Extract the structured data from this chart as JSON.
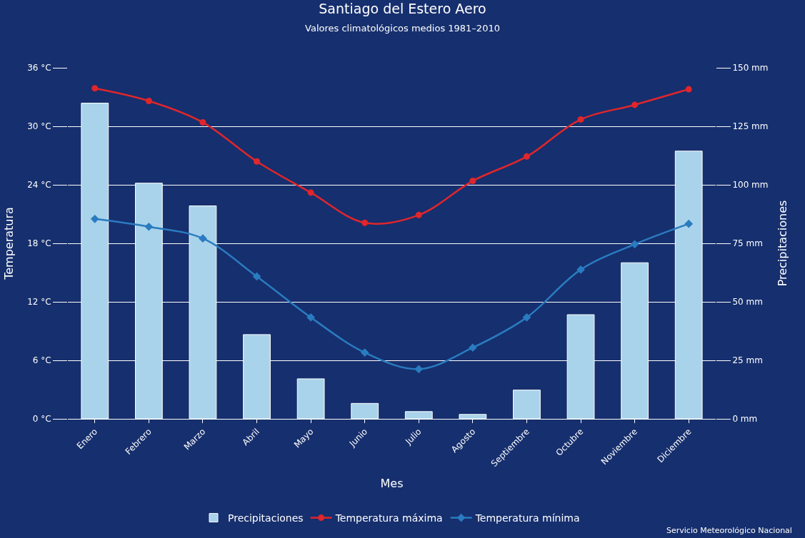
{
  "chart_data": {
    "type": "bar",
    "title": "Santiago del Estero Aero",
    "subtitle": "Valores climatológicos medios 1981–2010",
    "xlabel": "Mes",
    "ylabel": "Temperatura",
    "y2label": "Precipitaciones",
    "categories": [
      "Enero",
      "Febrero",
      "Marzo",
      "Abril",
      "Mayo",
      "Junio",
      "Julio",
      "Agosto",
      "Septiembre",
      "Octubre",
      "Noviembre",
      "Diciembre"
    ],
    "series": [
      {
        "name": "Precipitaciones",
        "axis": "y2",
        "color": "#a9d3ea",
        "values": [
          134.9,
          100.7,
          91.0,
          36.0,
          17.1,
          6.6,
          3.1,
          1.9,
          12.3,
          44.5,
          66.7,
          114.4
        ]
      },
      {
        "name": "Temperatura máxima",
        "type": "line",
        "color": "#e0262b",
        "marker": "circle",
        "values": [
          33.9,
          32.6,
          30.4,
          26.4,
          23.2,
          20.1,
          20.9,
          24.4,
          26.9,
          30.7,
          32.2,
          33.8
        ]
      },
      {
        "name": "Temperatura mínima",
        "type": "line",
        "color": "#2a7bc0",
        "marker": "diamond",
        "values": [
          20.5,
          19.7,
          18.5,
          14.6,
          10.4,
          6.8,
          5.1,
          7.3,
          10.4,
          15.3,
          17.9,
          20.0
        ]
      }
    ],
    "ylim": [
      0,
      36
    ],
    "yticks": [
      {
        "value": 0,
        "label": "0 °C"
      },
      {
        "value": 6,
        "label": "6 °C"
      },
      {
        "value": 12,
        "label": "12 °C"
      },
      {
        "value": 18,
        "label": "18 °C"
      },
      {
        "value": 24,
        "label": "24 °C"
      },
      {
        "value": 30,
        "label": "30 °C"
      },
      {
        "value": 36,
        "label": "36 °C"
      }
    ],
    "y2lim": [
      0,
      150
    ],
    "y2ticks": [
      {
        "value": 0,
        "label": "0 mm"
      },
      {
        "value": 25,
        "label": "25 mm"
      },
      {
        "value": 50,
        "label": "50 mm"
      },
      {
        "value": 75,
        "label": "75 mm"
      },
      {
        "value": 100,
        "label": "100 mm"
      },
      {
        "value": 125,
        "label": "125 mm"
      },
      {
        "value": 150,
        "label": "150 mm"
      }
    ],
    "grid": "y",
    "legend": "bottom",
    "annotations": [
      "Servicio Meteorológico Nacional"
    ]
  }
}
